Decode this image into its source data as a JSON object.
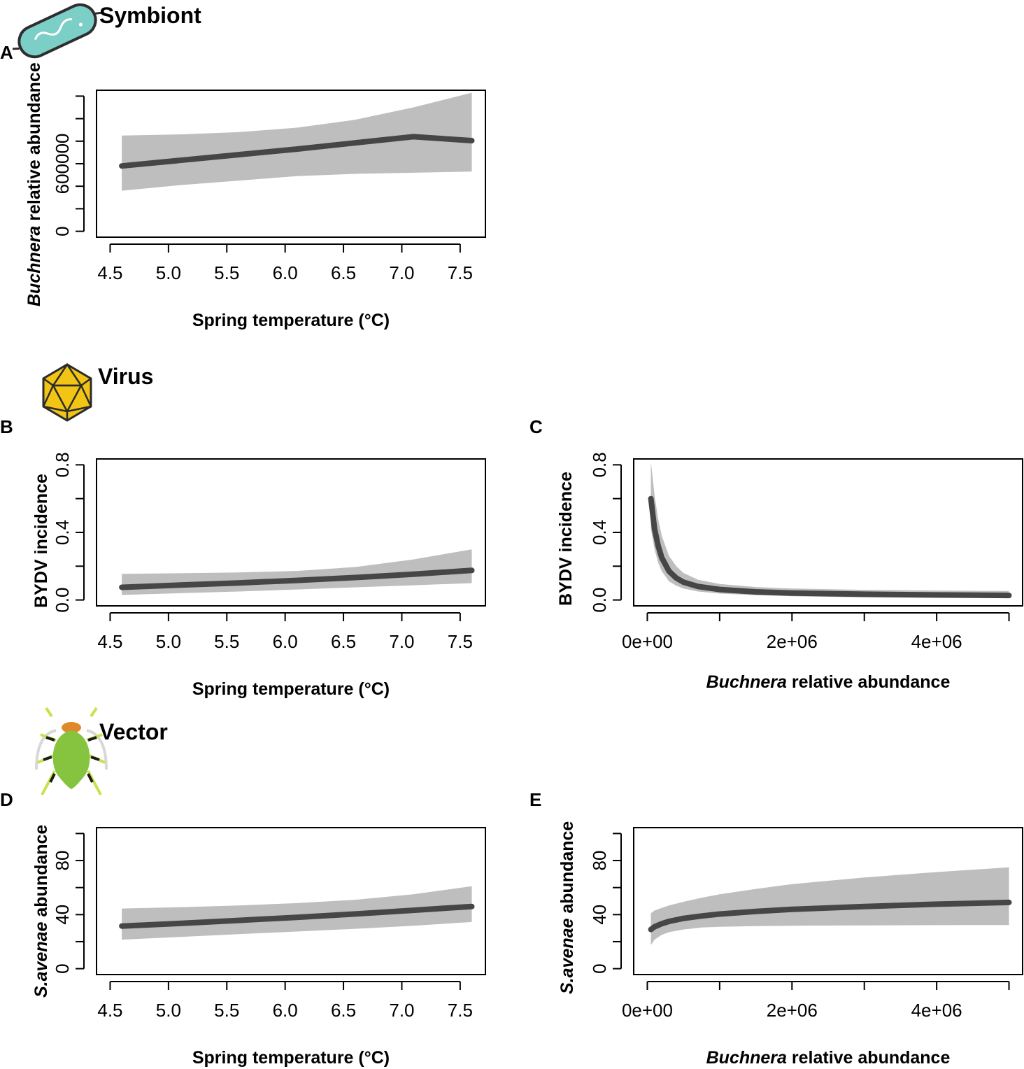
{
  "sections": {
    "symbiont": "Symbiont",
    "virus": "Virus",
    "vector": "Vector"
  },
  "colors": {
    "band": "#bebebe",
    "line": "#464646",
    "bacterium_fill": "#7ccfc6",
    "virus_fill": "#f2c414",
    "aphid_body": "#86c440",
    "aphid_head": "#e0892a",
    "aphid_leg": "#c5e34a"
  },
  "icons": {
    "symbiont": "bacterium-icon",
    "virus": "icosahedron-virus-icon",
    "vector": "aphid-icon"
  },
  "chart_data": [
    {
      "id": "A",
      "panel_label": "A",
      "type": "line",
      "xlabel": "Spring temperature (°C)",
      "ylabel_italic": "Buchnera",
      "ylabel_rest": " relative abundance",
      "xlim": [
        4.5,
        7.6
      ],
      "ylim": [
        0,
        1200000
      ],
      "x_ticks": [
        4.5,
        5.0,
        5.5,
        6.0,
        6.5,
        7.0,
        7.5
      ],
      "x_tick_labels": [
        "4.5",
        "5.0",
        "5.5",
        "6.0",
        "6.5",
        "7.0",
        "7.5"
      ],
      "y_ticks": [
        0,
        200000,
        400000,
        600000,
        800000,
        1000000,
        1200000
      ],
      "y_tick_labels": [
        "0",
        "",
        "",
        "600000",
        "",
        "",
        ""
      ],
      "x": [
        4.6,
        5.1,
        5.6,
        6.1,
        6.6,
        7.1,
        7.6
      ],
      "fit": [
        580000,
        630000,
        680000,
        730000,
        785000,
        840000,
        805000
      ],
      "lower": [
        360000,
        410000,
        450000,
        490000,
        510000,
        520000,
        530000
      ],
      "upper": [
        850000,
        860000,
        880000,
        920000,
        990000,
        1100000,
        1230000
      ]
    },
    {
      "id": "B",
      "panel_label": "B",
      "type": "line",
      "xlabel": "Spring temperature (°C)",
      "ylabel_italic": "",
      "ylabel_rest": "BYDV incidence",
      "xlim": [
        4.5,
        7.6
      ],
      "ylim": [
        0,
        0.8
      ],
      "x_ticks": [
        4.5,
        5.0,
        5.5,
        6.0,
        6.5,
        7.0,
        7.5
      ],
      "x_tick_labels": [
        "4.5",
        "5.0",
        "5.5",
        "6.0",
        "6.5",
        "7.0",
        "7.5"
      ],
      "y_ticks": [
        0,
        0.2,
        0.4,
        0.6,
        0.8
      ],
      "y_tick_labels": [
        "0.0",
        "",
        "0.4",
        "",
        "0.8"
      ],
      "x": [
        4.6,
        5.1,
        5.6,
        6.1,
        6.6,
        7.1,
        7.6
      ],
      "fit": [
        0.075,
        0.088,
        0.101,
        0.116,
        0.133,
        0.153,
        0.175
      ],
      "lower": [
        0.03,
        0.04,
        0.05,
        0.062,
        0.075,
        0.087,
        0.1
      ],
      "upper": [
        0.155,
        0.158,
        0.163,
        0.172,
        0.195,
        0.24,
        0.3
      ]
    },
    {
      "id": "C",
      "panel_label": "C",
      "type": "line",
      "xlabel_italic": "Buchnera",
      "xlabel_rest": " relative abundance",
      "ylabel_italic": "",
      "ylabel_rest": "BYDV incidence",
      "xlim": [
        0,
        5000000
      ],
      "ylim": [
        0,
        0.8
      ],
      "x_ticks": [
        0,
        1000000,
        2000000,
        3000000,
        4000000,
        5000000
      ],
      "x_tick_labels": [
        "0e+00",
        "",
        "2e+06",
        "",
        "4e+06",
        ""
      ],
      "y_ticks": [
        0,
        0.2,
        0.4,
        0.6,
        0.8
      ],
      "y_tick_labels": [
        "0.0",
        "",
        "0.4",
        "",
        "0.8"
      ],
      "x": [
        50000,
        100000,
        150000,
        200000,
        300000,
        400000,
        500000,
        700000,
        1000000,
        1500000,
        2000000,
        3000000,
        4000000,
        5000000
      ],
      "fit": [
        0.6,
        0.42,
        0.32,
        0.25,
        0.17,
        0.13,
        0.105,
        0.08,
        0.062,
        0.048,
        0.041,
        0.034,
        0.03,
        0.027
      ],
      "lower": [
        0.42,
        0.3,
        0.22,
        0.17,
        0.11,
        0.085,
        0.068,
        0.05,
        0.038,
        0.028,
        0.022,
        0.016,
        0.013,
        0.011
      ],
      "upper": [
        0.82,
        0.62,
        0.48,
        0.38,
        0.26,
        0.2,
        0.16,
        0.12,
        0.095,
        0.077,
        0.068,
        0.06,
        0.056,
        0.053
      ]
    },
    {
      "id": "D",
      "panel_label": "D",
      "type": "line",
      "xlabel": "Spring temperature (°C)",
      "ylabel_italic": "S.avenae",
      "ylabel_rest": "  abundance",
      "xlim": [
        4.5,
        7.6
      ],
      "ylim": [
        0,
        100
      ],
      "x_ticks": [
        4.5,
        5.0,
        5.5,
        6.0,
        6.5,
        7.0,
        7.5
      ],
      "x_tick_labels": [
        "4.5",
        "5.0",
        "5.5",
        "6.0",
        "6.5",
        "7.0",
        "7.5"
      ],
      "y_ticks": [
        0,
        20,
        40,
        60,
        80,
        100
      ],
      "y_tick_labels": [
        "0",
        "",
        "40",
        "",
        "80",
        ""
      ],
      "x": [
        4.6,
        5.1,
        5.6,
        6.1,
        6.6,
        7.1,
        7.6
      ],
      "fit": [
        31.5,
        33.5,
        35.7,
        38,
        40.5,
        43.2,
        46
      ],
      "lower": [
        21.5,
        23.5,
        25.5,
        27.5,
        29.5,
        31.8,
        34.5
      ],
      "upper": [
        44.5,
        45.5,
        46.8,
        48.5,
        51,
        55,
        61
      ]
    },
    {
      "id": "E",
      "panel_label": "E",
      "type": "line",
      "xlabel_italic": "Buchnera",
      "xlabel_rest": " relative abundance",
      "ylabel_italic": "S.avenae",
      "ylabel_rest": " abundance",
      "xlim": [
        0,
        5000000
      ],
      "ylim": [
        0,
        100
      ],
      "x_ticks": [
        0,
        1000000,
        2000000,
        3000000,
        4000000,
        5000000
      ],
      "x_tick_labels": [
        "0e+00",
        "",
        "2e+06",
        "",
        "4e+06",
        ""
      ],
      "y_ticks": [
        0,
        20,
        40,
        60,
        80,
        100
      ],
      "y_tick_labels": [
        "0",
        "",
        "40",
        "",
        "80",
        ""
      ],
      "x": [
        50000,
        100000,
        200000,
        300000,
        500000,
        750000,
        1000000,
        1500000,
        2000000,
        3000000,
        4000000,
        5000000
      ],
      "fit": [
        29,
        31,
        33.3,
        35,
        37.2,
        39,
        40.4,
        42.4,
        43.9,
        46,
        47.7,
        49
      ],
      "lower": [
        17.5,
        21.5,
        25,
        27,
        29,
        30.5,
        31,
        31.5,
        31.8,
        32,
        32.2,
        32.3
      ],
      "upper": [
        41,
        43,
        45,
        46.8,
        49.5,
        52.5,
        55,
        59,
        62.5,
        67.5,
        71.5,
        75
      ]
    }
  ]
}
